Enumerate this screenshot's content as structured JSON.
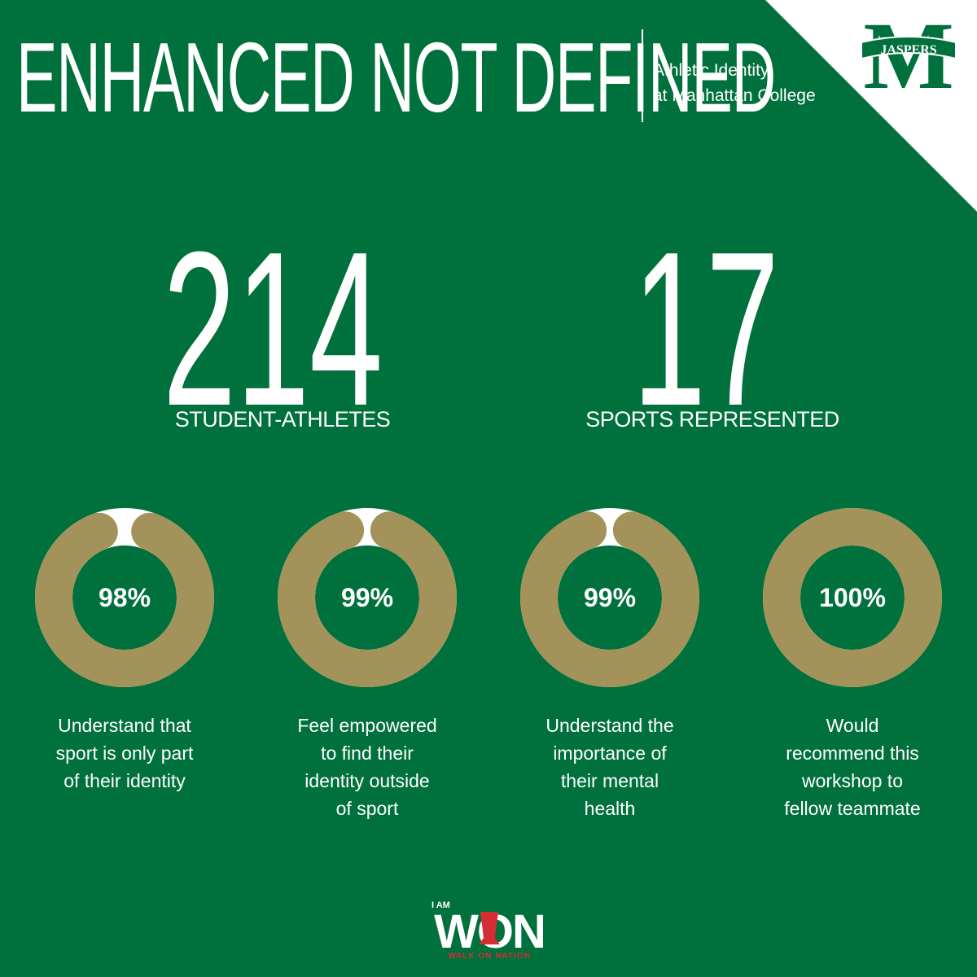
{
  "header": {
    "title": "ENHANCED NOT DEFINED",
    "subtitle_line1": "Athletic Identity",
    "subtitle_line2": "at Manhattan College"
  },
  "logo": {
    "letter": "M",
    "banner": "JASPERS"
  },
  "stats": [
    {
      "value": "214",
      "label": "STUDENT-ATHLETES"
    },
    {
      "value": "17",
      "label": "SPORTS REPRESENTED"
    }
  ],
  "chart_data": {
    "type": "pie",
    "subtype": "donut",
    "items": [
      {
        "value": 98,
        "label": "98%",
        "description": "Understand that sport is only part of their identity"
      },
      {
        "value": 99,
        "label": "99%",
        "description": "Feel empowered to find their identity outside of sport"
      },
      {
        "value": 99,
        "label": "99%",
        "description": "Understand the importance of their mental health"
      },
      {
        "value": 100,
        "label": "100%",
        "description": "Would recommend this workshop to fellow teammate"
      }
    ]
  },
  "descriptions": [
    [
      "Understand that",
      "sport is only part",
      "of their identity"
    ],
    [
      "Feel empowered",
      "to find their",
      "identity outside",
      "of sport"
    ],
    [
      "Understand the",
      "importance of",
      "their mental",
      "health"
    ],
    [
      "Would",
      "recommend this",
      "workshop to",
      "fellow teammate"
    ]
  ],
  "footer": {
    "logo_top": "I AM",
    "logo_main": "WON",
    "logo_bottom": "WALK ON NATION"
  },
  "colors": {
    "background": "#00703c",
    "donut_fill": "#a3935a",
    "donut_track": "#ffffff",
    "accent_red": "#d42e35",
    "text": "#ffffff"
  }
}
